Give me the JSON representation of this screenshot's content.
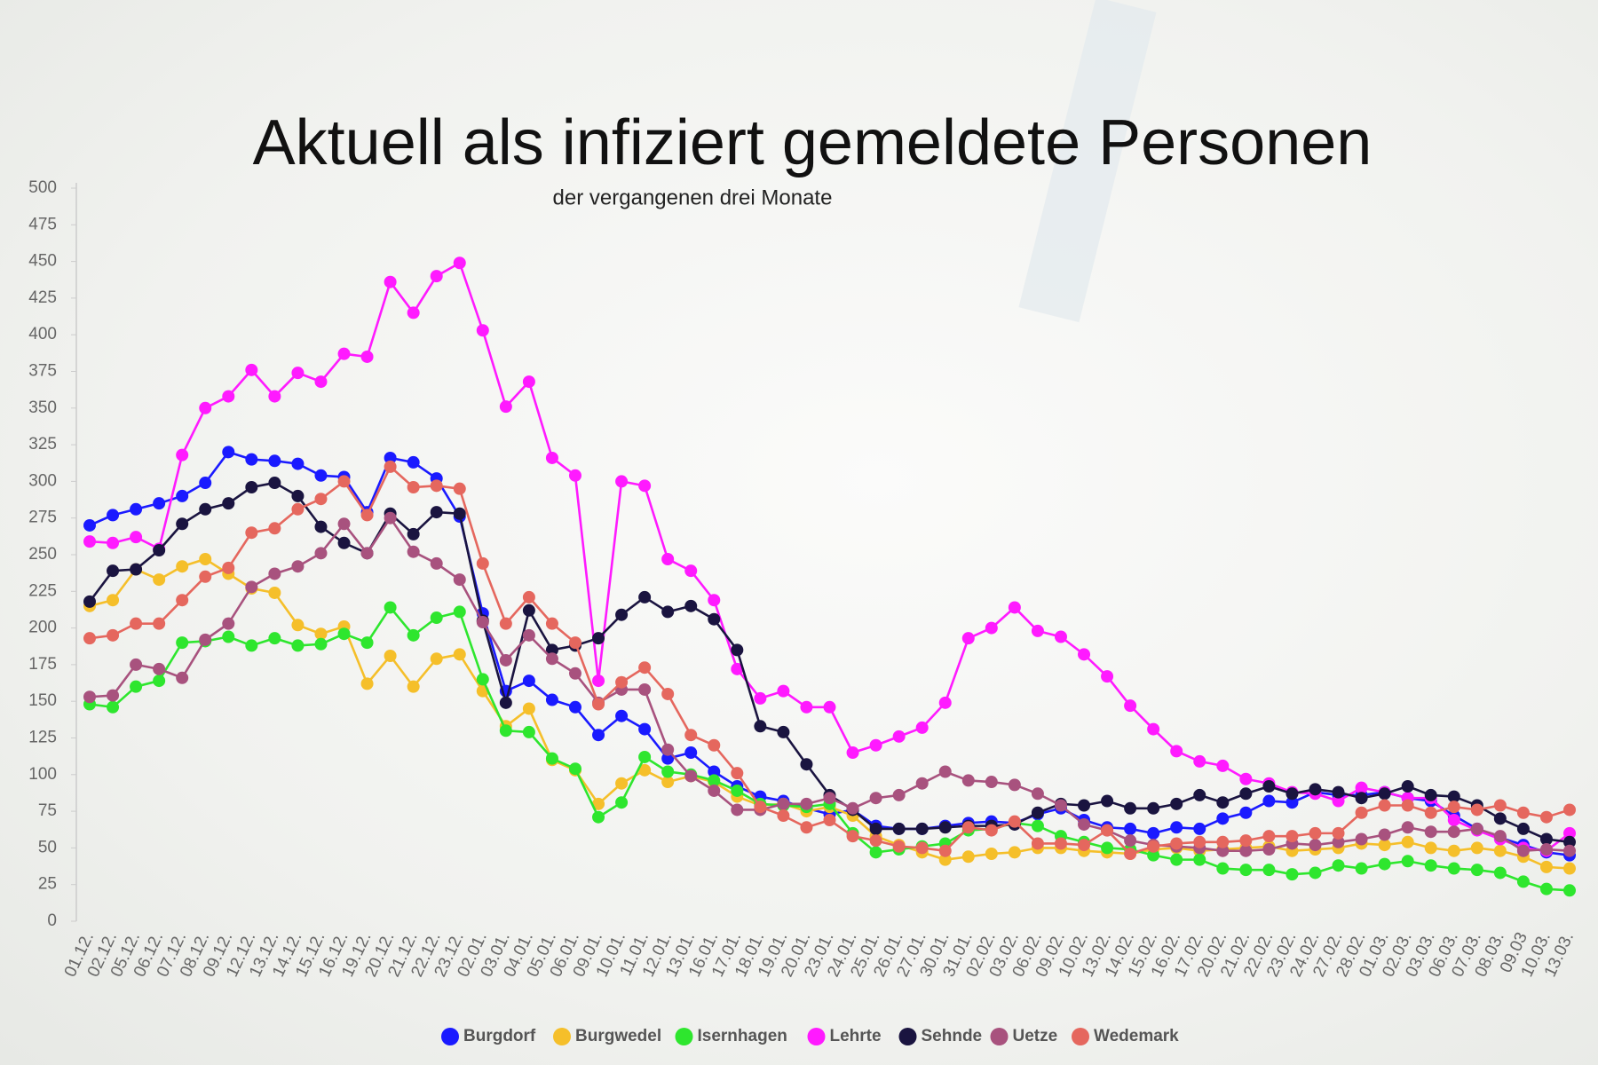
{
  "chart_data": {
    "type": "line",
    "title": "Aktuell als infiziert gemeldete Personen",
    "subtitle": "der vergangenen drei Monate",
    "categories": [
      "01.12.",
      "02.12.",
      "05.12.",
      "06.12.",
      "07.12.",
      "08.12.",
      "09.12.",
      "12.12.",
      "13.12.",
      "14.12.",
      "15.12.",
      "16.12.",
      "19.12.",
      "20.12.",
      "21.12.",
      "22.12.",
      "23.12.",
      "02.01.",
      "03.01.",
      "04.01.",
      "05.01.",
      "06.01.",
      "09.01.",
      "10.01.",
      "11.01.",
      "12.01.",
      "13.01.",
      "16.01.",
      "17.01.",
      "18.01.",
      "19.01.",
      "20.01.",
      "23.01.",
      "24.01.",
      "25.01.",
      "26.01.",
      "27.01.",
      "30.01.",
      "31.01.",
      "02.02.",
      "03.02.",
      "06.02.",
      "09.02.",
      "10.02.",
      "13.02.",
      "14.02.",
      "15.02.",
      "16.02.",
      "17.02.",
      "20.02.",
      "21.02.",
      "22.02.",
      "23.02.",
      "24.02.",
      "27.02.",
      "28.02.",
      "01.03.",
      "02.03.",
      "03.03.",
      "06.03.",
      "07.03.",
      "08.03.",
      "09.03",
      "10.03.",
      "13.03."
    ],
    "ylim": [
      0,
      500
    ],
    "yticks": [
      0,
      25,
      50,
      75,
      100,
      125,
      150,
      175,
      200,
      225,
      250,
      275,
      300,
      325,
      350,
      375,
      400,
      425,
      450,
      475,
      500
    ],
    "grid": false,
    "legend": "bottom",
    "series": [
      {
        "name": "Burgdorf",
        "color": "#1a1aff",
        "values": [
          270,
          277,
          281,
          285,
          290,
          299,
          320,
          315,
          314,
          312,
          304,
          303,
          279,
          316,
          313,
          302,
          276,
          210,
          157,
          164,
          151,
          146,
          127,
          140,
          131,
          111,
          115,
          102,
          92,
          85,
          82,
          77,
          73,
          76,
          65,
          63,
          63,
          65,
          67,
          68,
          67,
          73,
          77,
          69,
          64,
          63,
          60,
          64,
          63,
          70,
          74,
          82,
          81,
          88,
          86,
          86,
          88,
          84,
          82,
          72,
          63,
          57,
          52,
          47,
          45
        ]
      },
      {
        "name": "Burgwedel",
        "color": "#f5bf2a",
        "values": [
          215,
          219,
          240,
          233,
          242,
          247,
          237,
          227,
          224,
          202,
          196,
          201,
          162,
          181,
          160,
          179,
          182,
          157,
          133,
          145,
          110,
          103,
          80,
          94,
          103,
          95,
          99,
          95,
          85,
          79,
          80,
          75,
          78,
          72,
          58,
          52,
          47,
          42,
          44,
          46,
          47,
          50,
          50,
          48,
          47,
          46,
          49,
          50,
          48,
          49,
          50,
          51,
          48,
          49,
          50,
          53,
          52,
          54,
          50,
          48,
          50,
          48,
          44,
          37,
          36
        ]
      },
      {
        "name": "Isernhagen",
        "color": "#2ee62e",
        "values": [
          148,
          146,
          160,
          164,
          190,
          191,
          194,
          188,
          193,
          188,
          189,
          196,
          190,
          214,
          195,
          207,
          211,
          165,
          130,
          129,
          111,
          104,
          71,
          81,
          112,
          102,
          100,
          96,
          89,
          80,
          79,
          78,
          80,
          60,
          47,
          49,
          51,
          53,
          62,
          63,
          67,
          65,
          58,
          54,
          50,
          49,
          45,
          42,
          42,
          36,
          35,
          35,
          32,
          33,
          38,
          36,
          39,
          41,
          38,
          36,
          35,
          33,
          27,
          22,
          21
        ]
      },
      {
        "name": "Lehrte",
        "color": "#ff1aff",
        "values": [
          259,
          258,
          262,
          254,
          318,
          350,
          358,
          376,
          358,
          374,
          368,
          387,
          385,
          436,
          415,
          440,
          449,
          403,
          351,
          368,
          316,
          304,
          164,
          300,
          297,
          247,
          239,
          219,
          172,
          152,
          157,
          146,
          146,
          115,
          120,
          126,
          132,
          149,
          193,
          200,
          214,
          198,
          194,
          182,
          167,
          147,
          131,
          116,
          109,
          106,
          97,
          94,
          88,
          87,
          82,
          91,
          88,
          84,
          84,
          69,
          62,
          56,
          50,
          48,
          60
        ]
      },
      {
        "name": "Sehnde",
        "color": "#1a1440",
        "values": [
          218,
          239,
          240,
          253,
          271,
          281,
          285,
          296,
          299,
          290,
          269,
          258,
          251,
          278,
          264,
          279,
          278,
          205,
          149,
          212,
          185,
          188,
          193,
          209,
          221,
          211,
          215,
          206,
          185,
          133,
          129,
          107,
          86,
          76,
          63,
          63,
          63,
          64,
          65,
          65,
          66,
          74,
          80,
          79,
          82,
          77,
          77,
          80,
          86,
          81,
          87,
          92,
          87,
          90,
          88,
          84,
          87,
          92,
          86,
          85,
          79,
          70,
          63,
          56,
          54
        ]
      },
      {
        "name": "Uetze",
        "color": "#a8527e",
        "values": [
          153,
          154,
          175,
          172,
          166,
          192,
          203,
          228,
          237,
          242,
          251,
          271,
          251,
          275,
          252,
          244,
          233,
          204,
          178,
          195,
          179,
          169,
          149,
          158,
          158,
          117,
          99,
          89,
          76,
          76,
          80,
          80,
          84,
          77,
          84,
          86,
          94,
          102,
          96,
          95,
          93,
          87,
          79,
          66,
          62,
          55,
          52,
          51,
          50,
          48,
          48,
          49,
          53,
          52,
          54,
          56,
          59,
          64,
          61,
          61,
          63,
          58,
          48,
          49,
          48
        ]
      },
      {
        "name": "Wedemark",
        "color": "#e5675e",
        "values": [
          193,
          195,
          203,
          203,
          219,
          235,
          241,
          265,
          268,
          281,
          288,
          300,
          277,
          310,
          296,
          297,
          295,
          244,
          203,
          221,
          203,
          190,
          148,
          163,
          173,
          155,
          127,
          120,
          101,
          78,
          72,
          64,
          69,
          58,
          55,
          51,
          50,
          48,
          64,
          62,
          68,
          53,
          53,
          52,
          62,
          46,
          51,
          53,
          54,
          54,
          55,
          58,
          58,
          60,
          60,
          74,
          79,
          79,
          74,
          78,
          76,
          79,
          74,
          71,
          76
        ]
      }
    ]
  }
}
